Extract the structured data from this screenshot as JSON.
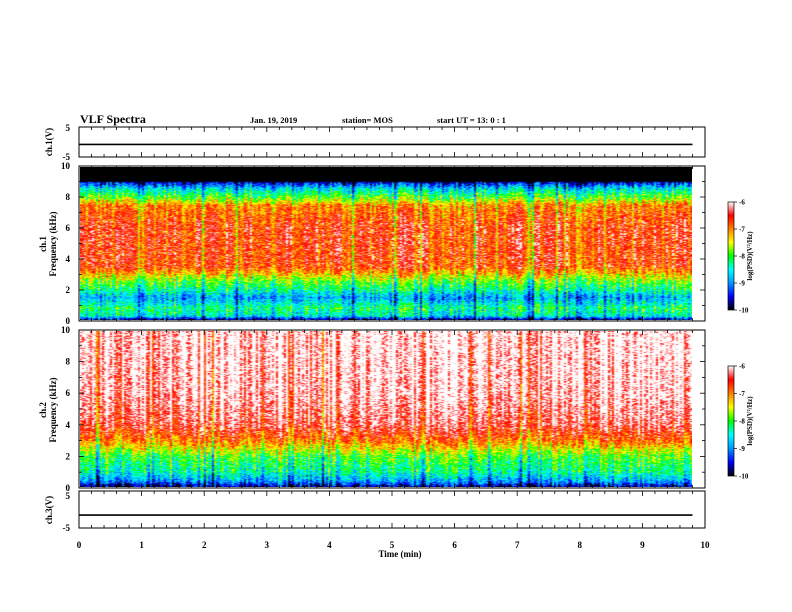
{
  "header": {
    "title": "VLF Spectra",
    "date": "Jan. 19, 2019",
    "station": "station= MOS",
    "start": "start  UT =   13: 0  : 1"
  },
  "colors": {
    "ramp": [
      "#000000",
      "#0000ff",
      "#0096ff",
      "#00ffff",
      "#00ff00",
      "#ffff00",
      "#ff8000",
      "#ff0000",
      "#ffffff"
    ],
    "trace": "#000000"
  },
  "chart_data": [
    {
      "type": "line",
      "name": "ch.1(V)",
      "ylabel": "ch.1(V)",
      "ylim": [
        -5,
        5
      ],
      "yticks": [
        "5",
        "-5"
      ],
      "x": [
        0,
        9.8
      ],
      "y": [
        -0.8,
        -0.8
      ]
    },
    {
      "type": "heatmap",
      "name": "ch.1 spectrogram",
      "ylabel": "ch.1\nFrequency (kHz)",
      "ylabel_lines": [
        "ch.1",
        "Frequency (kHz)"
      ],
      "ylim": [
        0,
        10
      ],
      "yticks": [
        "0",
        "2",
        "4",
        "6",
        "8",
        "10"
      ],
      "xlim": [
        0,
        10
      ],
      "data_xmax": 9.8,
      "colorbar": {
        "label": "log(PSD)(V²/Hz)",
        "ticks": [
          "-6",
          "-7",
          "-8",
          "-9",
          "-10"
        ],
        "range": [
          -10,
          -6
        ]
      },
      "frequency_profile_kHz": [
        {
          "f": 0.0,
          "level": -10
        },
        {
          "f": 0.3,
          "level": -8.5
        },
        {
          "f": 0.8,
          "level": -8.2
        },
        {
          "f": 1.5,
          "level": -8.9
        },
        {
          "f": 2.0,
          "level": -8.3
        },
        {
          "f": 2.6,
          "level": -7.8
        },
        {
          "f": 3.5,
          "level": -6.7
        },
        {
          "f": 6.0,
          "level": -6.6
        },
        {
          "f": 7.5,
          "level": -7.0
        },
        {
          "f": 8.0,
          "level": -7.8
        },
        {
          "f": 8.6,
          "level": -8.6
        },
        {
          "f": 9.0,
          "level": -9.5
        },
        {
          "f": 9.1,
          "level": -10
        },
        {
          "f": 10.0,
          "level": -10
        }
      ]
    },
    {
      "type": "heatmap",
      "name": "ch.2 spectrogram",
      "ylabel": "ch.2\nFrequency (kHz)",
      "ylabel_lines": [
        "ch.2",
        "Frequency (kHz)"
      ],
      "ylim": [
        0,
        10
      ],
      "yticks": [
        "0",
        "2",
        "4",
        "6",
        "8",
        "10"
      ],
      "xlim": [
        0,
        10
      ],
      "data_xmax": 9.8,
      "colorbar": {
        "label": "log(PSD)(V²/Hz)",
        "ticks": [
          "-6",
          "-7",
          "-8",
          "-9",
          "-10"
        ],
        "range": [
          -10,
          -6
        ]
      },
      "frequency_profile_kHz": [
        {
          "f": 0.0,
          "level": -9.8
        },
        {
          "f": 0.4,
          "level": -8.9
        },
        {
          "f": 1.0,
          "level": -8.3
        },
        {
          "f": 2.0,
          "level": -7.9
        },
        {
          "f": 3.0,
          "level": -6.9
        },
        {
          "f": 4.0,
          "level": -6.3
        },
        {
          "f": 6.0,
          "level": -6.0
        },
        {
          "f": 9.9,
          "level": -5.9
        },
        {
          "f": 10.0,
          "level": -5.9
        }
      ]
    },
    {
      "type": "line",
      "name": "ch.3(V)",
      "ylabel": "ch.3(V)",
      "ylim": [
        -5,
        5
      ],
      "yticks": [
        "5",
        "0",
        "-5"
      ],
      "x": [
        0,
        9.8
      ],
      "y": [
        -1.5,
        -1.5
      ]
    }
  ],
  "xaxis": {
    "label": "Time (min)",
    "ticks": [
      "0",
      "1",
      "2",
      "3",
      "4",
      "5",
      "6",
      "7",
      "8",
      "9",
      "10"
    ],
    "range": [
      0,
      10
    ]
  }
}
